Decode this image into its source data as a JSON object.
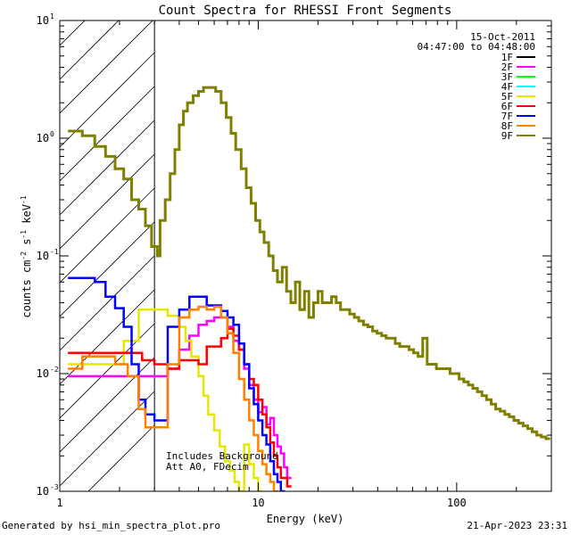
{
  "chart_data": {
    "type": "line",
    "title": "Count Spectra for RHESSI Front Segments",
    "xlabel": "Energy (keV)",
    "ylabel_parts": [
      "counts cm",
      "-2",
      " s",
      "-1",
      " keV",
      "-1"
    ],
    "x_scale": "log",
    "y_scale": "log",
    "xlim": [
      1,
      300
    ],
    "ylim": [
      0.001,
      10
    ],
    "x_ticks": [
      {
        "v": 1,
        "label": "1"
      },
      {
        "v": 10,
        "label": "10"
      },
      {
        "v": 100,
        "label": "100"
      }
    ],
    "y_ticks": [
      {
        "v": 0.001,
        "base": "10",
        "exp": "-3"
      },
      {
        "v": 0.01,
        "base": "10",
        "exp": "-2"
      },
      {
        "v": 0.1,
        "base": "10",
        "exp": "-1"
      },
      {
        "v": 1,
        "base": "10",
        "exp": "0"
      },
      {
        "v": 10,
        "base": "10",
        "exp": "1"
      }
    ],
    "hatched_region_keV": [
      1,
      3
    ],
    "date": "15-Oct-2011",
    "time_range": "04:47:00 to 04:48:00",
    "annotations": [
      "Includes Background",
      "Att A0, FDecim"
    ],
    "series": [
      {
        "name": "1F",
        "color": "#000000",
        "points": []
      },
      {
        "name": "2F",
        "color": "#ff00ff",
        "points": [
          [
            1.1,
            0.0095
          ],
          [
            1.3,
            0.0095
          ],
          [
            1.5,
            0.0095
          ],
          [
            1.8,
            0.0095
          ],
          [
            2.1,
            0.0095
          ],
          [
            2.5,
            0.0095
          ],
          [
            3,
            0.0095
          ],
          [
            3.5,
            0.011
          ],
          [
            4,
            0.016
          ],
          [
            4.5,
            0.021
          ],
          [
            5,
            0.026
          ],
          [
            5.5,
            0.028
          ],
          [
            6,
            0.03
          ],
          [
            6.5,
            0.03
          ],
          [
            7,
            0.025
          ],
          [
            7.5,
            0.019
          ],
          [
            8,
            0.016
          ],
          [
            8.5,
            0.011
          ],
          [
            9,
            0.008
          ],
          [
            9.5,
            0.006
          ],
          [
            10,
            0.0047
          ],
          [
            10.5,
            0.0052
          ],
          [
            11,
            0.0037
          ],
          [
            11.5,
            0.0042
          ],
          [
            12,
            0.003
          ],
          [
            12.5,
            0.0024
          ],
          [
            13,
            0.0021
          ],
          [
            13.5,
            0.0016
          ],
          [
            14,
            0.0013
          ]
        ]
      },
      {
        "name": "3F",
        "color": "#00ff00",
        "points": []
      },
      {
        "name": "4F",
        "color": "#00ffff",
        "points": []
      },
      {
        "name": "5F",
        "color": "#e6e600",
        "points": [
          [
            1.1,
            0.012
          ],
          [
            1.4,
            0.012
          ],
          [
            1.8,
            0.012
          ],
          [
            2.1,
            0.019
          ],
          [
            2.5,
            0.035
          ],
          [
            3,
            0.035
          ],
          [
            3.5,
            0.031
          ],
          [
            4,
            0.025
          ],
          [
            4.3,
            0.019
          ],
          [
            4.6,
            0.014
          ],
          [
            5,
            0.0095
          ],
          [
            5.3,
            0.0065
          ],
          [
            5.6,
            0.0045
          ],
          [
            6,
            0.0033
          ],
          [
            6.4,
            0.0024
          ],
          [
            6.8,
            0.0018
          ],
          [
            7.2,
            0.0015
          ],
          [
            7.6,
            0.0012
          ],
          [
            8,
            0.001
          ],
          [
            8.5,
            0.0025
          ],
          [
            9,
            0.0017
          ],
          [
            9.5,
            0.0013
          ],
          [
            10,
            0.001
          ]
        ]
      },
      {
        "name": "6F",
        "color": "#ff0000",
        "points": [
          [
            1.1,
            0.015
          ],
          [
            1.4,
            0.015
          ],
          [
            1.8,
            0.015
          ],
          [
            2.2,
            0.015
          ],
          [
            2.6,
            0.013
          ],
          [
            3,
            0.012
          ],
          [
            3.5,
            0.011
          ],
          [
            4,
            0.013
          ],
          [
            4.5,
            0.013
          ],
          [
            5,
            0.012
          ],
          [
            5.5,
            0.017
          ],
          [
            6,
            0.017
          ],
          [
            6.5,
            0.02
          ],
          [
            7,
            0.024
          ],
          [
            7.5,
            0.021
          ],
          [
            8,
            0.016
          ],
          [
            8.5,
            0.012
          ],
          [
            9,
            0.009
          ],
          [
            9.5,
            0.008
          ],
          [
            10,
            0.006
          ],
          [
            10.5,
            0.0045
          ],
          [
            11,
            0.0035
          ],
          [
            11.5,
            0.0026
          ],
          [
            12,
            0.002
          ],
          [
            12.5,
            0.0016
          ],
          [
            13,
            0.0013
          ],
          [
            14,
            0.0011
          ]
        ]
      },
      {
        "name": "7F",
        "color": "#0000ff",
        "points": [
          [
            1.1,
            0.065
          ],
          [
            1.3,
            0.065
          ],
          [
            1.5,
            0.06
          ],
          [
            1.7,
            0.045
          ],
          [
            1.9,
            0.036
          ],
          [
            2.1,
            0.025
          ],
          [
            2.3,
            0.012
          ],
          [
            2.5,
            0.006
          ],
          [
            2.7,
            0.0045
          ],
          [
            3,
            0.004
          ],
          [
            3.5,
            0.025
          ],
          [
            4,
            0.035
          ],
          [
            4.5,
            0.045
          ],
          [
            5,
            0.045
          ],
          [
            5.5,
            0.038
          ],
          [
            6,
            0.038
          ],
          [
            6.5,
            0.034
          ],
          [
            7,
            0.03
          ],
          [
            7.5,
            0.026
          ],
          [
            8,
            0.018
          ],
          [
            8.5,
            0.012
          ],
          [
            9,
            0.0075
          ],
          [
            9.5,
            0.0055
          ],
          [
            10,
            0.004
          ],
          [
            10.5,
            0.003
          ],
          [
            11,
            0.0025
          ],
          [
            11.5,
            0.0018
          ],
          [
            12,
            0.0014
          ],
          [
            12.5,
            0.0012
          ],
          [
            13,
            0.001
          ]
        ]
      },
      {
        "name": "8F",
        "color": "#ff8000",
        "points": [
          [
            1.1,
            0.011
          ],
          [
            1.3,
            0.014
          ],
          [
            1.6,
            0.014
          ],
          [
            1.9,
            0.012
          ],
          [
            2.2,
            0.0095
          ],
          [
            2.5,
            0.005
          ],
          [
            2.7,
            0.0035
          ],
          [
            3,
            0.0035
          ],
          [
            3.5,
            0.012
          ],
          [
            4,
            0.03
          ],
          [
            4.5,
            0.035
          ],
          [
            5,
            0.037
          ],
          [
            5.5,
            0.035
          ],
          [
            6,
            0.037
          ],
          [
            6.5,
            0.03
          ],
          [
            7,
            0.022
          ],
          [
            7.5,
            0.015
          ],
          [
            8,
            0.009
          ],
          [
            8.5,
            0.006
          ],
          [
            9,
            0.004
          ],
          [
            9.5,
            0.003
          ],
          [
            10,
            0.0022
          ],
          [
            10.5,
            0.0017
          ],
          [
            11,
            0.0014
          ],
          [
            11.5,
            0.0012
          ],
          [
            12,
            0.001
          ]
        ]
      },
      {
        "name": "9F",
        "color": "#808000",
        "points": [
          [
            1.1,
            1.15
          ],
          [
            1.3,
            1.05
          ],
          [
            1.5,
            0.85
          ],
          [
            1.7,
            0.7
          ],
          [
            1.9,
            0.55
          ],
          [
            2.1,
            0.45
          ],
          [
            2.3,
            0.3
          ],
          [
            2.5,
            0.25
          ],
          [
            2.7,
            0.18
          ],
          [
            2.9,
            0.12
          ],
          [
            3.1,
            0.1
          ],
          [
            3.2,
            0.2
          ],
          [
            3.4,
            0.3
          ],
          [
            3.6,
            0.5
          ],
          [
            3.8,
            0.8
          ],
          [
            4,
            1.3
          ],
          [
            4.2,
            1.7
          ],
          [
            4.4,
            2.0
          ],
          [
            4.7,
            2.3
          ],
          [
            5.0,
            2.5
          ],
          [
            5.3,
            2.7
          ],
          [
            5.7,
            2.7
          ],
          [
            6.1,
            2.5
          ],
          [
            6.5,
            2.0
          ],
          [
            6.9,
            1.5
          ],
          [
            7.3,
            1.1
          ],
          [
            7.7,
            0.8
          ],
          [
            8.2,
            0.55
          ],
          [
            8.7,
            0.38
          ],
          [
            9.2,
            0.28
          ],
          [
            9.7,
            0.2
          ],
          [
            10.2,
            0.16
          ],
          [
            10.7,
            0.13
          ],
          [
            11.3,
            0.1
          ],
          [
            11.9,
            0.075
          ],
          [
            12.5,
            0.06
          ],
          [
            13.2,
            0.08
          ],
          [
            13.9,
            0.05
          ],
          [
            14.6,
            0.04
          ],
          [
            15.4,
            0.06
          ],
          [
            16.2,
            0.035
          ],
          [
            17.1,
            0.05
          ],
          [
            18,
            0.03
          ],
          [
            19,
            0.04
          ],
          [
            20,
            0.05
          ],
          [
            21,
            0.04
          ],
          [
            22.2,
            0.04
          ],
          [
            23.4,
            0.045
          ],
          [
            24.7,
            0.04
          ],
          [
            26,
            0.035
          ],
          [
            27.4,
            0.035
          ],
          [
            28.9,
            0.032
          ],
          [
            30.5,
            0.03
          ],
          [
            32.1,
            0.028
          ],
          [
            33.9,
            0.026
          ],
          [
            35.7,
            0.025
          ],
          [
            37.7,
            0.023
          ],
          [
            39.7,
            0.022
          ],
          [
            41.9,
            0.021
          ],
          [
            44.1,
            0.02
          ],
          [
            46.5,
            0.02
          ],
          [
            49,
            0.018
          ],
          [
            51.7,
            0.017
          ],
          [
            54.5,
            0.017
          ],
          [
            57.5,
            0.016
          ],
          [
            60.6,
            0.015
          ],
          [
            63.9,
            0.014
          ],
          [
            67.4,
            0.02
          ],
          [
            71,
            0.012
          ],
          [
            74.9,
            0.012
          ],
          [
            79,
            0.011
          ],
          [
            83.3,
            0.011
          ],
          [
            87.8,
            0.011
          ],
          [
            92.6,
            0.01
          ],
          [
            97.6,
            0.01
          ],
          [
            102.9,
            0.009
          ],
          [
            108.5,
            0.0085
          ],
          [
            114.4,
            0.008
          ],
          [
            120.6,
            0.0075
          ],
          [
            127.2,
            0.007
          ],
          [
            134.1,
            0.0065
          ],
          [
            141.4,
            0.006
          ],
          [
            149.1,
            0.0055
          ],
          [
            157.2,
            0.005
          ],
          [
            165.8,
            0.0048
          ],
          [
            174.8,
            0.0045
          ],
          [
            184.3,
            0.0043
          ],
          [
            194.3,
            0.004
          ],
          [
            204.9,
            0.0038
          ],
          [
            216,
            0.0036
          ],
          [
            227.8,
            0.0034
          ],
          [
            240.2,
            0.0032
          ],
          [
            253.2,
            0.003
          ],
          [
            267,
            0.0029
          ],
          [
            281.5,
            0.0028
          ]
        ]
      }
    ]
  },
  "footer": {
    "left": "Generated by hsi_min_spectra_plot.pro",
    "right": "21-Apr-2023 23:31"
  }
}
